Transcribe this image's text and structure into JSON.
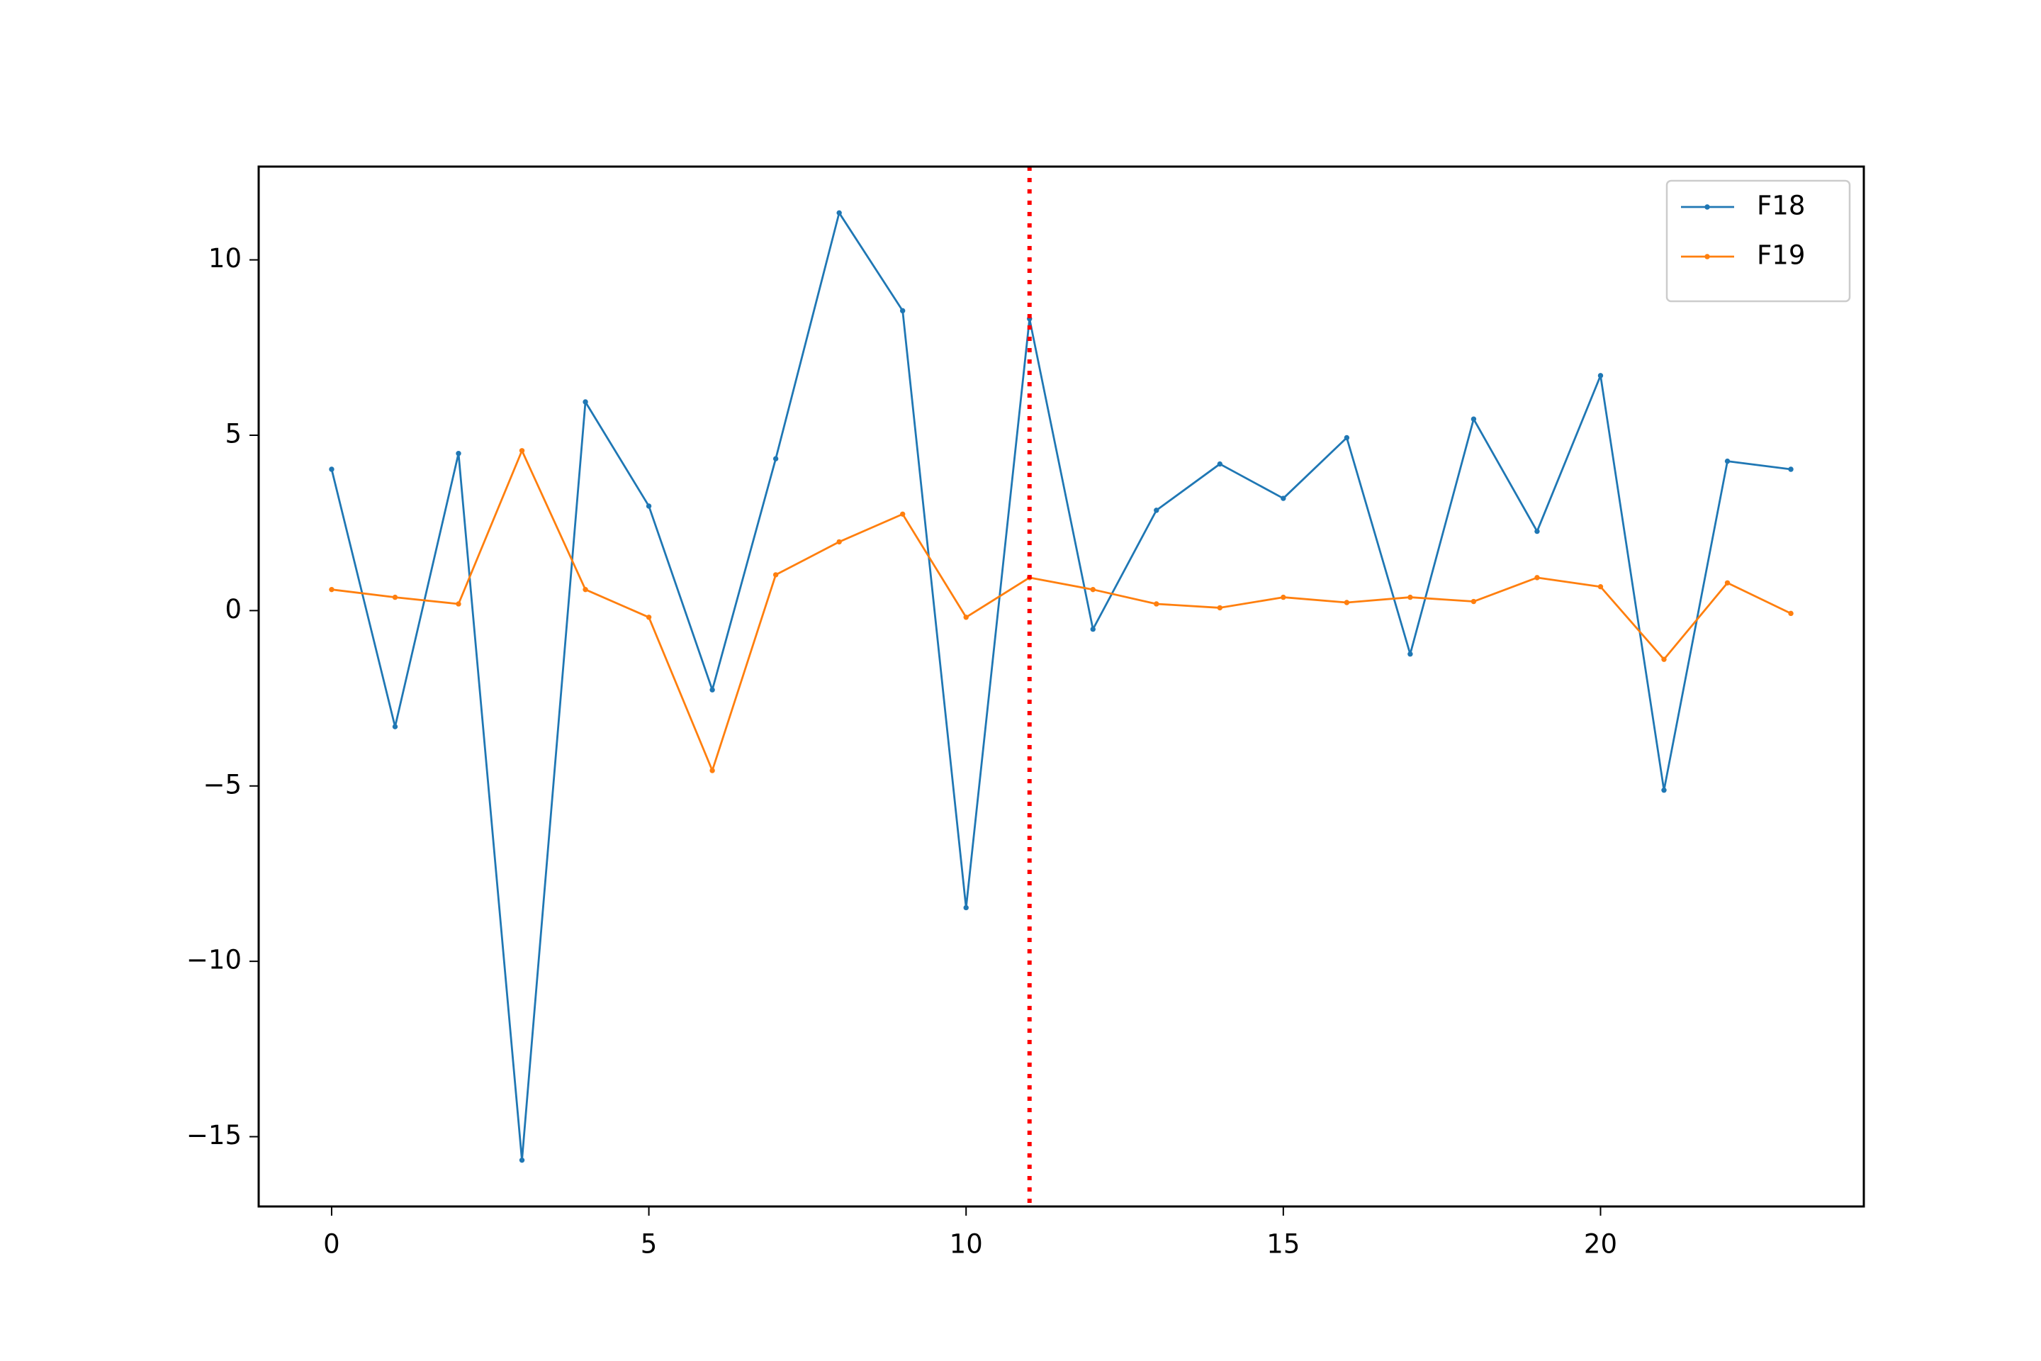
{
  "chart_data": {
    "type": "line",
    "x": [
      0,
      1,
      2,
      3,
      4,
      5,
      6,
      7,
      8,
      9,
      10,
      11,
      12,
      13,
      14,
      15,
      16,
      17,
      18,
      19,
      20,
      21,
      22,
      23
    ],
    "series": [
      {
        "name": "F18",
        "color": "#1f77b4",
        "values": [
          4.03,
          -3.31,
          4.48,
          -15.67,
          5.95,
          2.98,
          -2.26,
          4.33,
          11.34,
          8.55,
          -8.47,
          8.32,
          -0.53,
          2.86,
          4.18,
          3.2,
          4.93,
          -1.24,
          5.46,
          2.26,
          6.7,
          -5.12,
          4.26,
          4.03
        ]
      },
      {
        "name": "F19",
        "color": "#ff7f0e",
        "values": [
          0.6,
          0.38,
          0.19,
          4.56,
          0.6,
          -0.19,
          -4.56,
          1.02,
          1.96,
          2.75,
          -0.19,
          0.94,
          0.6,
          0.19,
          0.08,
          0.38,
          0.23,
          0.38,
          0.26,
          0.94,
          0.68,
          -1.39,
          0.79,
          -0.08
        ]
      }
    ],
    "vlines": [
      {
        "x": 11,
        "color": "#ff0000",
        "style": "dotted"
      }
    ],
    "xlim": [
      -1.15,
      24.15
    ],
    "ylim": [
      -16.99,
      12.66
    ],
    "xticks": [
      0,
      5,
      10,
      15,
      20
    ],
    "yticks": [
      {
        "value": -15,
        "label": "−15"
      },
      {
        "value": -10,
        "label": "−10"
      },
      {
        "value": -5,
        "label": "−5"
      },
      0,
      5,
      10
    ],
    "grid": false,
    "legend": "upper right"
  }
}
